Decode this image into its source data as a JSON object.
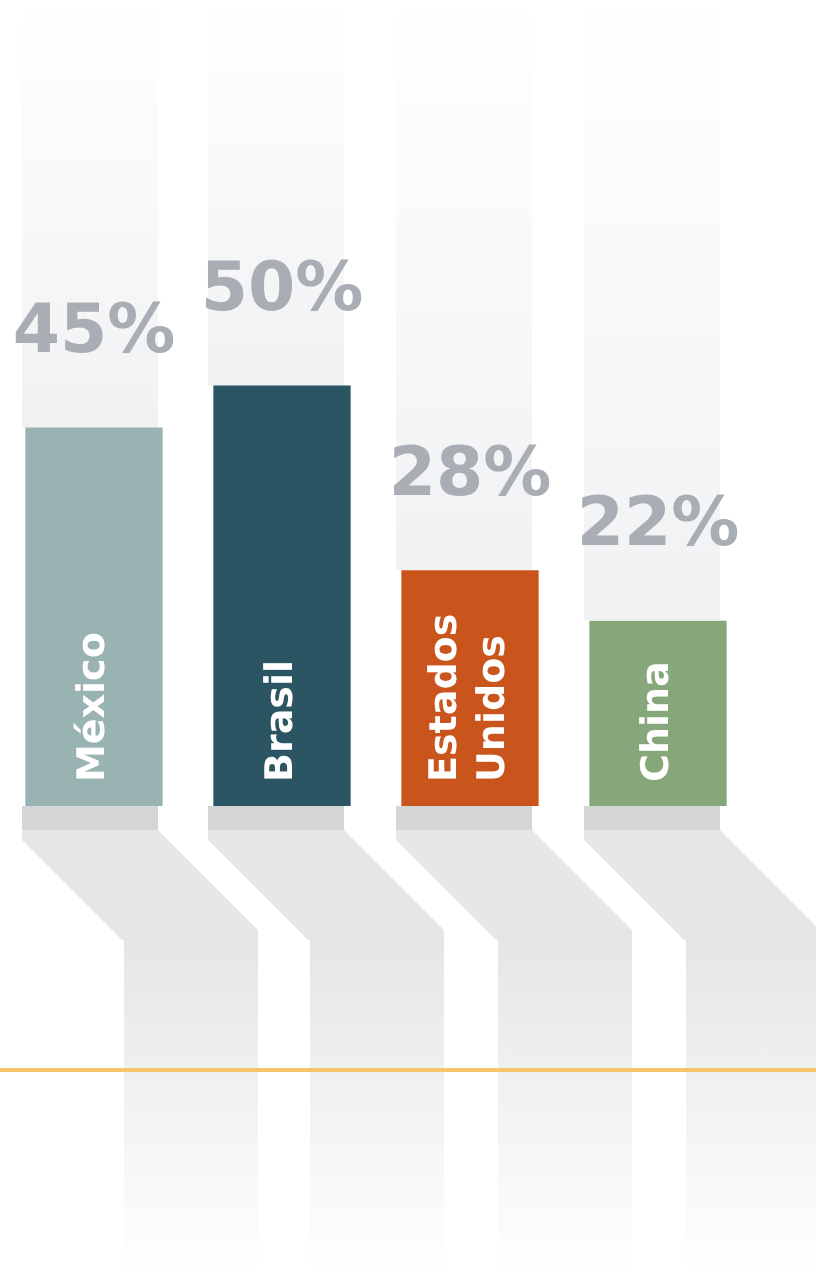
{
  "chart_data": {
    "type": "bar",
    "categories": [
      "México",
      "Brasil",
      "Estados Unidos",
      "China"
    ],
    "values": [
      45,
      50,
      28,
      22
    ],
    "value_labels": [
      "45%",
      "50%",
      "28%",
      "22%"
    ],
    "colors": [
      "#98b3b1",
      "#2b5563",
      "#c9541c",
      "#86a77a"
    ],
    "tick_labels": "x"
  }
}
